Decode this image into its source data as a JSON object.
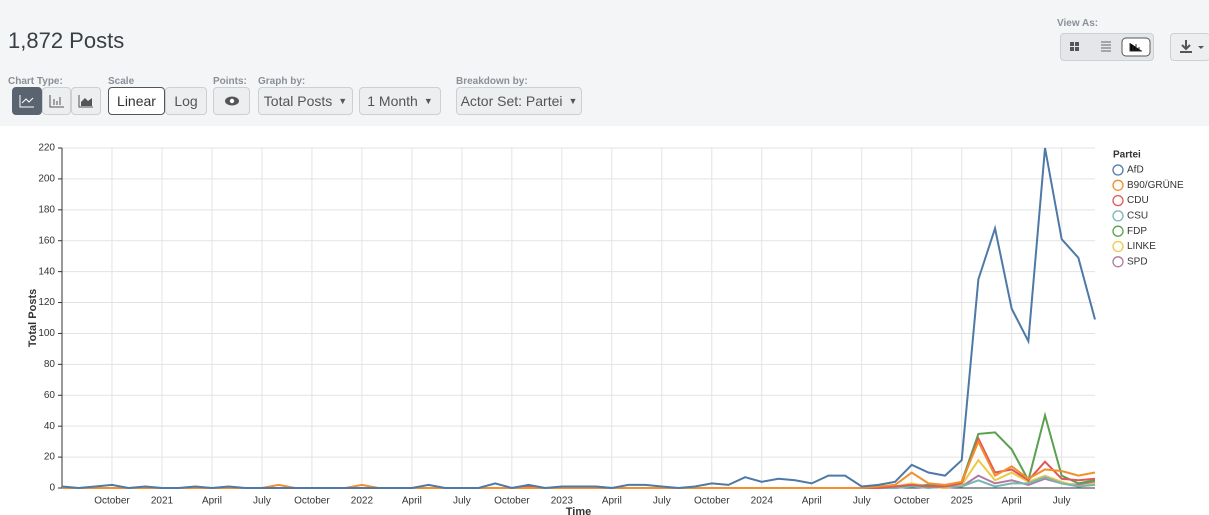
{
  "header": {
    "title": "1,872 Posts",
    "view_as": "View As:"
  },
  "controls": {
    "chart_type": "Chart Type:",
    "scale": "Scale",
    "scale_options": [
      "Linear",
      "Log"
    ],
    "points": "Points:",
    "graph_by": "Graph by:",
    "graph_by_value": "Total Posts",
    "interval": "1 Month",
    "breakdown_by": "Breakdown by:",
    "breakdown_value": "Actor Set: Partei"
  },
  "chart_data": {
    "type": "line",
    "y_label": "Total Posts",
    "x_label": "Time",
    "legend_title": "Partei",
    "legend_position": "right",
    "grid": true,
    "ylim": [
      0,
      220
    ],
    "yticks": [
      0,
      20,
      40,
      60,
      80,
      100,
      120,
      140,
      160,
      180,
      200,
      220
    ],
    "categories": [
      null,
      null,
      null,
      "October",
      null,
      null,
      "2021",
      null,
      null,
      "April",
      null,
      null,
      "July",
      null,
      null,
      "October",
      null,
      null,
      "2022",
      null,
      null,
      "April",
      null,
      null,
      "July",
      null,
      null,
      "October",
      null,
      null,
      "2023",
      null,
      null,
      "April",
      null,
      null,
      "July",
      null,
      null,
      "October",
      null,
      null,
      "2024",
      null,
      null,
      "April",
      null,
      null,
      "July",
      null,
      null,
      "October",
      null,
      null,
      "2025",
      null,
      null,
      "April",
      null,
      null,
      "July",
      null,
      null
    ],
    "series": [
      {
        "name": "AfD",
        "color": "#4e79a7",
        "values": [
          1,
          0,
          1,
          2,
          0,
          1,
          0,
          0,
          1,
          0,
          1,
          0,
          0,
          0,
          0,
          0,
          0,
          0,
          0,
          0,
          0,
          0,
          2,
          0,
          0,
          0,
          3,
          0,
          2,
          0,
          1,
          1,
          1,
          0,
          2,
          2,
          1,
          0,
          1,
          3,
          2,
          7,
          4,
          6,
          5,
          3,
          8,
          8,
          1,
          2,
          4,
          15,
          10,
          8,
          18,
          135,
          168,
          116,
          95,
          220,
          161,
          149,
          109
        ]
      },
      {
        "name": "B90/GRÜNE",
        "color": "#f28e2b",
        "values": [
          0,
          0,
          0,
          0,
          0,
          0,
          0,
          0,
          0,
          0,
          0,
          0,
          0,
          2,
          0,
          0,
          0,
          0,
          2,
          0,
          0,
          0,
          0,
          0,
          0,
          0,
          0,
          0,
          0,
          0,
          0,
          0,
          0,
          0,
          0,
          0,
          0,
          0,
          0,
          0,
          0,
          0,
          0,
          0,
          0,
          0,
          0,
          0,
          0,
          1,
          2,
          10,
          3,
          2,
          4,
          30,
          8,
          14,
          6,
          12,
          11,
          8,
          10
        ]
      },
      {
        "name": "CDU",
        "color": "#e15759",
        "values": [
          0,
          0,
          0,
          0,
          0,
          0,
          0,
          0,
          0,
          0,
          0,
          0,
          0,
          0,
          0,
          0,
          0,
          0,
          0,
          0,
          0,
          0,
          0,
          0,
          0,
          0,
          0,
          0,
          1,
          0,
          0,
          0,
          0,
          0,
          0,
          0,
          0,
          0,
          0,
          0,
          0,
          0,
          0,
          0,
          0,
          0,
          0,
          0,
          0,
          0,
          1,
          2,
          1,
          1,
          3,
          32,
          10,
          12,
          5,
          17,
          6,
          5,
          6
        ]
      },
      {
        "name": "CSU",
        "color": "#76b7b2",
        "values": [
          0,
          0,
          0,
          0,
          0,
          0,
          0,
          0,
          0,
          0,
          0,
          0,
          0,
          0,
          0,
          0,
          0,
          0,
          0,
          0,
          0,
          0,
          0,
          0,
          0,
          0,
          0,
          0,
          0,
          0,
          0,
          0,
          0,
          0,
          0,
          0,
          0,
          0,
          0,
          0,
          0,
          0,
          0,
          0,
          0,
          0,
          0,
          0,
          0,
          0,
          0,
          1,
          0,
          1,
          1,
          5,
          1,
          3,
          3,
          7,
          3,
          1,
          2
        ]
      },
      {
        "name": "FDP",
        "color": "#59a14f",
        "values": [
          0,
          0,
          0,
          0,
          0,
          0,
          0,
          0,
          0,
          0,
          0,
          0,
          0,
          0,
          0,
          0,
          0,
          0,
          0,
          0,
          0,
          0,
          0,
          0,
          0,
          0,
          0,
          0,
          0,
          0,
          0,
          0,
          1,
          0,
          0,
          0,
          0,
          0,
          0,
          0,
          0,
          0,
          0,
          0,
          0,
          0,
          0,
          0,
          0,
          0,
          1,
          1,
          2,
          1,
          4,
          35,
          36,
          25,
          5,
          47,
          8,
          3,
          5
        ]
      },
      {
        "name": "LINKE",
        "color": "#edc948",
        "values": [
          0,
          0,
          0,
          0,
          0,
          0,
          0,
          0,
          0,
          0,
          0,
          0,
          0,
          0,
          0,
          0,
          0,
          0,
          0,
          0,
          0,
          0,
          0,
          0,
          0,
          0,
          0,
          0,
          0,
          0,
          0,
          0,
          0,
          0,
          0,
          0,
          0,
          0,
          0,
          0,
          0,
          0,
          0,
          0,
          0,
          0,
          0,
          0,
          0,
          0,
          1,
          3,
          1,
          0,
          2,
          18,
          5,
          10,
          4,
          8,
          4,
          1,
          3
        ]
      },
      {
        "name": "SPD",
        "color": "#b07aa1",
        "values": [
          0,
          0,
          0,
          0,
          0,
          0,
          0,
          0,
          0,
          0,
          0,
          0,
          0,
          0,
          0,
          0,
          0,
          0,
          0,
          0,
          0,
          0,
          0,
          0,
          0,
          0,
          0,
          0,
          0,
          0,
          0,
          0,
          0,
          0,
          0,
          0,
          0,
          0,
          0,
          0,
          0,
          0,
          0,
          0,
          0,
          0,
          0,
          0,
          0,
          0,
          0,
          1,
          1,
          0,
          1,
          8,
          3,
          5,
          2,
          6,
          3,
          2,
          4
        ]
      }
    ]
  }
}
